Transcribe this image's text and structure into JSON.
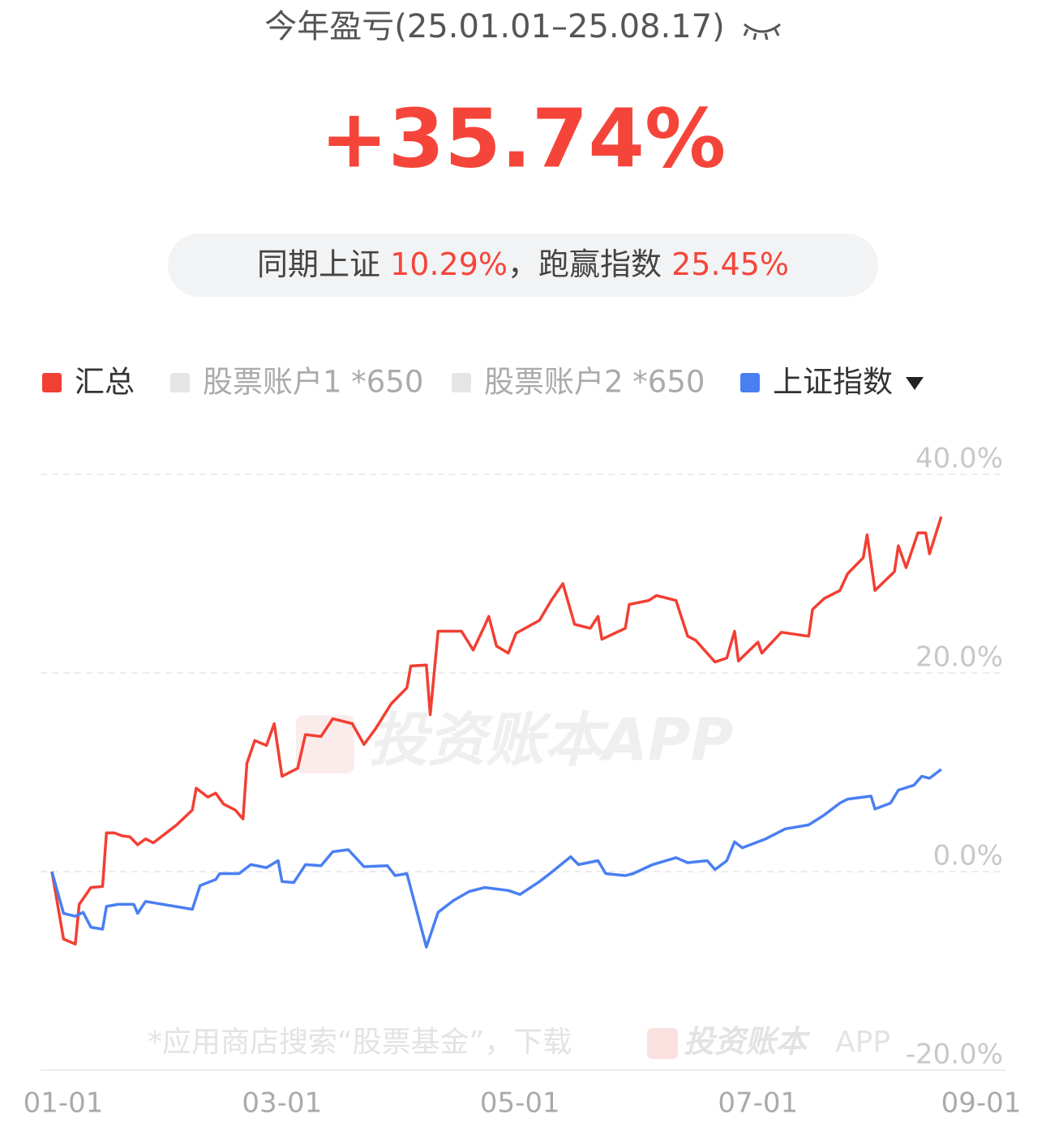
{
  "header": {
    "title": "今年盈亏(25.01.01–25.08.17)",
    "total_return": "+35.74%"
  },
  "comparison": {
    "label": "同期上证",
    "index_return": "10.29%",
    "separator": "，跑赢指数",
    "excess_return": "25.45%"
  },
  "watermark": {
    "brand": "投资账本APP",
    "footer": "*应用商店搜索“股票基金”，下载",
    "footer_brand": "投资账本",
    "footer_app": "APP"
  },
  "chart_data": {
    "type": "line",
    "xlim": [
      "01-01",
      "09-01"
    ],
    "xticks": [
      "01-01",
      "03-01",
      "05-01",
      "07-01",
      "09-01"
    ],
    "ylim": [
      -20,
      40
    ],
    "yticks": [
      {
        "value": 40,
        "label": "40.0%"
      },
      {
        "value": 20,
        "label": "20.0%"
      },
      {
        "value": 0,
        "label": "0.0%"
      },
      {
        "value": -20,
        "label": "-20.0%"
      }
    ],
    "grid": true,
    "series": [
      {
        "name": "汇总",
        "color": "#f23f33",
        "visible": true,
        "x": [
          "01-01",
          "01-04",
          "01-07",
          "01-08",
          "01-11",
          "01-14",
          "01-15",
          "01-17",
          "01-19",
          "01-21",
          "01-23",
          "01-25",
          "01-27",
          "02-02",
          "02-06",
          "02-07",
          "02-10",
          "02-12",
          "02-14",
          "02-17",
          "02-19",
          "02-20",
          "02-22",
          "02-25",
          "02-27",
          "03-01",
          "03-05",
          "03-07",
          "03-11",
          "03-14",
          "03-19",
          "03-22",
          "03-25",
          "03-29",
          "04-02",
          "04-03",
          "04-07",
          "04-08",
          "04-10",
          "04-16",
          "04-19",
          "04-22",
          "04-23",
          "04-25",
          "04-28",
          "04-30",
          "05-06",
          "05-09",
          "05-12",
          "05-15",
          "05-19",
          "05-21",
          "05-22",
          "05-28",
          "05-29",
          "06-03",
          "06-05",
          "06-10",
          "06-13",
          "06-15",
          "06-20",
          "06-23",
          "06-25",
          "06-26",
          "07-01",
          "07-02",
          "07-07",
          "07-14",
          "07-15",
          "07-18",
          "07-22",
          "07-24",
          "07-28",
          "07-29",
          "07-31",
          "08-05",
          "08-06",
          "08-08",
          "08-11",
          "08-13",
          "08-14",
          "08-17"
        ],
        "values": [
          0,
          -6.8,
          -7.3,
          -3.3,
          -1.6,
          -1.5,
          3.9,
          3.9,
          3.6,
          3.5,
          2.7,
          3.3,
          2.9,
          4.7,
          6.2,
          8.4,
          7.5,
          7.9,
          6.8,
          6.2,
          5.3,
          10.9,
          13.2,
          12.7,
          14.9,
          9.6,
          10.4,
          13.8,
          13.6,
          15.4,
          14.9,
          12.8,
          14.4,
          16.9,
          18.5,
          20.7,
          20.8,
          15.8,
          24.2,
          24.2,
          22.3,
          24.8,
          25.7,
          22.7,
          22.0,
          24.0,
          25.3,
          27.3,
          29.0,
          24.9,
          24.5,
          25.7,
          23.4,
          24.5,
          26.9,
          27.3,
          27.8,
          27.3,
          23.7,
          23.3,
          21.1,
          21.5,
          24.2,
          21.2,
          23.1,
          22.0,
          24.1,
          23.7,
          26.4,
          27.5,
          28.3,
          30.0,
          31.6,
          33.9,
          28.3,
          30.2,
          32.8,
          30.6,
          34.1,
          34.1,
          32.0,
          35.74
        ]
      },
      {
        "name": "股票账户1 *650",
        "color": "#e5e5e5",
        "visible": false,
        "x": [],
        "values": []
      },
      {
        "name": "股票账户2  *650",
        "color": "#e5e5e5",
        "visible": false,
        "x": [],
        "values": []
      },
      {
        "name": "上证指数",
        "color": "#4a7ff2",
        "visible": true,
        "x": [
          "01-01",
          "01-04",
          "01-07",
          "01-09",
          "01-11",
          "01-14",
          "01-15",
          "01-18",
          "01-22",
          "01-23",
          "01-25",
          "02-06",
          "02-08",
          "02-12",
          "02-13",
          "02-18",
          "02-21",
          "02-25",
          "02-28",
          "03-01",
          "03-04",
          "03-07",
          "03-11",
          "03-14",
          "03-18",
          "03-22",
          "03-28",
          "03-30",
          "04-02",
          "04-07",
          "04-10",
          "04-14",
          "04-18",
          "04-22",
          "04-28",
          "05-01",
          "05-06",
          "05-09",
          "05-14",
          "05-16",
          "05-21",
          "05-23",
          "05-28",
          "05-30",
          "06-04",
          "06-10",
          "06-13",
          "06-18",
          "06-20",
          "06-23",
          "06-25",
          "06-27",
          "07-03",
          "07-08",
          "07-14",
          "07-18",
          "07-22",
          "07-24",
          "07-30",
          "07-31",
          "08-04",
          "08-06",
          "08-10",
          "08-12",
          "08-14",
          "08-17"
        ],
        "values": [
          0,
          -4.2,
          -4.5,
          -4.1,
          -5.6,
          -5.8,
          -3.5,
          -3.3,
          -3.3,
          -4.2,
          -3.0,
          -3.8,
          -1.4,
          -0.8,
          -0.2,
          -0.2,
          0.7,
          0.4,
          1.1,
          -1.0,
          -1.1,
          0.7,
          0.6,
          2.0,
          2.2,
          0.5,
          0.6,
          -0.4,
          -0.2,
          -7.6,
          -4.1,
          -2.9,
          -2.0,
          -1.6,
          -1.9,
          -2.3,
          -1.0,
          -0.1,
          1.5,
          0.7,
          1.1,
          -0.2,
          -0.4,
          -0.2,
          0.7,
          1.4,
          0.9,
          1.1,
          0.2,
          1.1,
          3.0,
          2.4,
          3.3,
          4.3,
          4.7,
          5.7,
          6.9,
          7.3,
          7.6,
          6.3,
          6.9,
          8.2,
          8.7,
          9.6,
          9.4,
          10.29
        ]
      }
    ]
  }
}
